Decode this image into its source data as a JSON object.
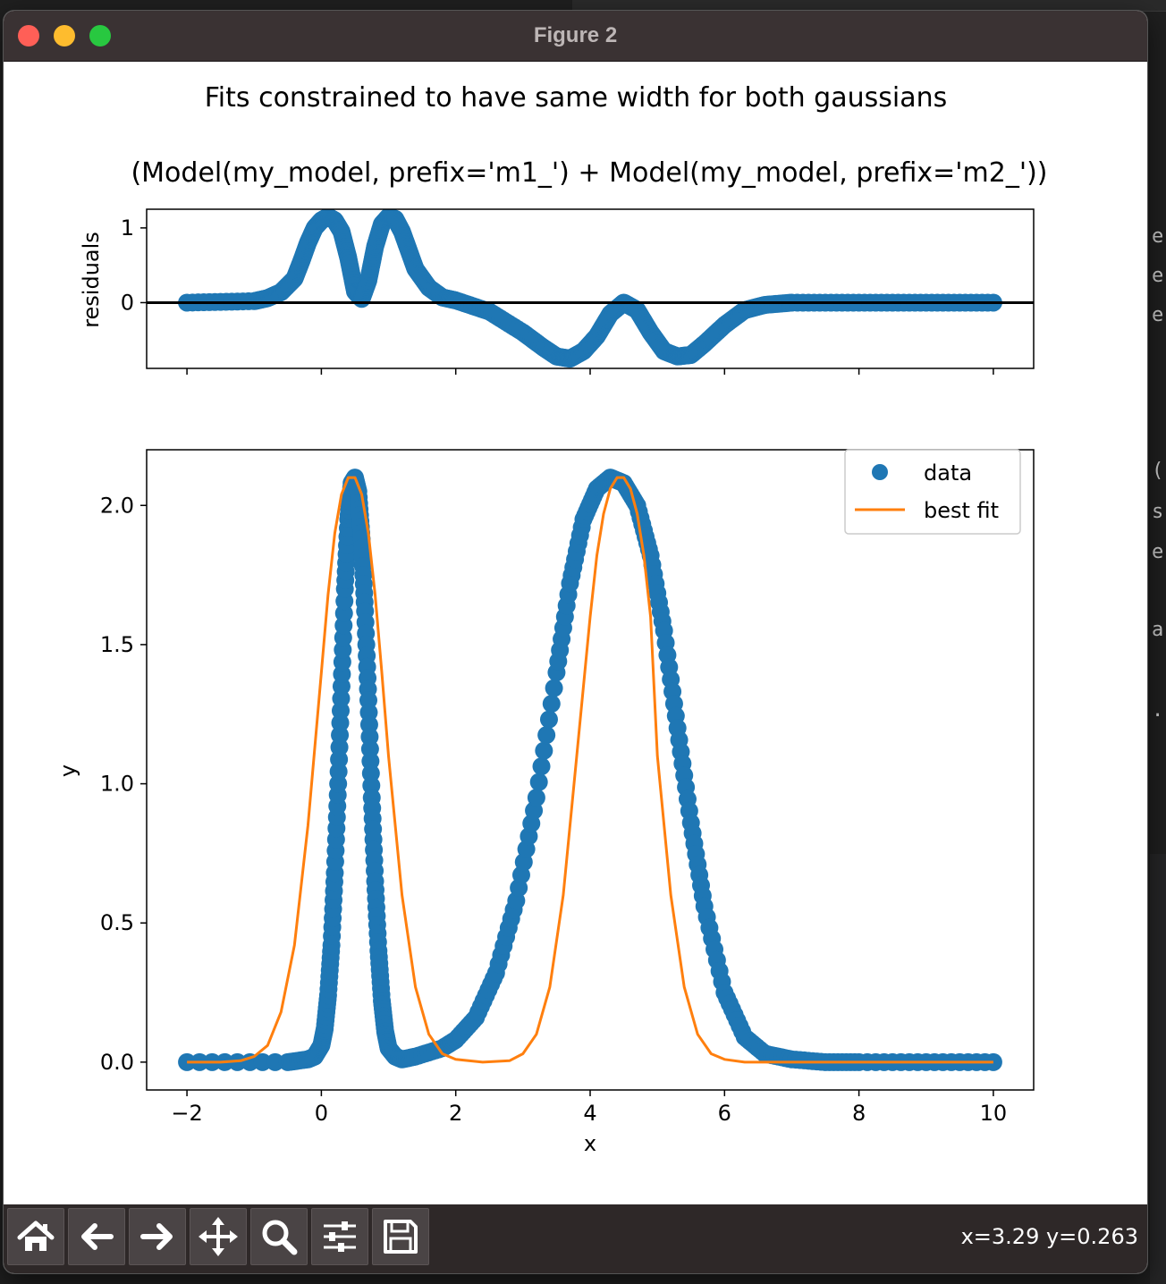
{
  "window": {
    "title": "Figure 2"
  },
  "figure": {
    "suptitle": "Fits constrained to have same width for both gaussians",
    "top_title": "(Model(my_model, prefix='m1_') + Model(my_model, prefix='m2_'))",
    "top_ylabel": "residuals",
    "bottom_xlabel": "x",
    "bottom_ylabel": "y"
  },
  "chart_data": [
    {
      "type": "scatter",
      "panel": "residuals",
      "xlim": [
        -2.6,
        10.6
      ],
      "ylim": [
        -0.88,
        1.25
      ],
      "yticks": [
        "0",
        "1"
      ],
      "y_tick_values": [
        0,
        1
      ],
      "x_tick_values": [
        -2,
        0,
        2,
        4,
        6,
        8,
        10
      ],
      "hline": 0,
      "series": [
        {
          "x": [
            -2.0,
            -1.0,
            -0.8,
            -0.6,
            -0.4,
            -0.3,
            -0.2,
            -0.1,
            0.0,
            0.1,
            0.2,
            0.3,
            0.4,
            0.5,
            0.6,
            0.7,
            0.8,
            0.9,
            1.0,
            1.1,
            1.2,
            1.3,
            1.4,
            1.6,
            1.8,
            2.0,
            2.5,
            3.0,
            3.3,
            3.5,
            3.7,
            3.9,
            4.1,
            4.3,
            4.5,
            4.7,
            4.9,
            5.1,
            5.3,
            5.5,
            5.7,
            6.0,
            6.3,
            6.6,
            7.0,
            8.0,
            9.0,
            10.0
          ],
          "y": [
            0.0,
            0.02,
            0.06,
            0.14,
            0.32,
            0.55,
            0.8,
            1.0,
            1.1,
            1.15,
            1.1,
            0.95,
            0.6,
            0.15,
            0.05,
            0.3,
            0.75,
            1.05,
            1.15,
            1.12,
            0.95,
            0.7,
            0.45,
            0.2,
            0.07,
            0.03,
            -0.12,
            -0.4,
            -0.6,
            -0.72,
            -0.75,
            -0.65,
            -0.45,
            -0.15,
            0.0,
            -0.1,
            -0.4,
            -0.65,
            -0.72,
            -0.7,
            -0.55,
            -0.3,
            -0.1,
            -0.03,
            0.0,
            0.0,
            0.0,
            0.0
          ]
        }
      ]
    },
    {
      "type": "scatter",
      "panel": "data",
      "xlim": [
        -2.6,
        10.6
      ],
      "ylim": [
        -0.1,
        2.2
      ],
      "xticks": [
        "−2",
        "0",
        "2",
        "4",
        "6",
        "8",
        "10"
      ],
      "x_tick_values": [
        -2,
        0,
        2,
        4,
        6,
        8,
        10
      ],
      "yticks": [
        "0.0",
        "0.5",
        "1.0",
        "1.5",
        "2.0"
      ],
      "y_tick_values": [
        0.0,
        0.5,
        1.0,
        1.5,
        2.0
      ],
      "legend_location": "top-right",
      "series": [
        {
          "name": "data",
          "x": [
            -2.0,
            -0.5,
            -0.2,
            -0.1,
            0.0,
            0.05,
            0.1,
            0.15,
            0.2,
            0.25,
            0.3,
            0.35,
            0.4,
            0.45,
            0.5,
            0.55,
            0.6,
            0.65,
            0.7,
            0.75,
            0.8,
            0.85,
            0.9,
            0.95,
            1.0,
            1.1,
            1.2,
            1.4,
            1.8,
            2.0,
            2.3,
            2.6,
            2.9,
            3.2,
            3.5,
            3.7,
            3.9,
            4.1,
            4.3,
            4.5,
            4.7,
            4.9,
            5.1,
            5.3,
            5.5,
            5.7,
            6.0,
            6.3,
            6.6,
            7.0,
            7.5,
            8.0,
            9.0,
            10.0
          ],
          "y": [
            0.0,
            0.0,
            0.01,
            0.02,
            0.06,
            0.12,
            0.24,
            0.42,
            0.68,
            1.0,
            1.35,
            1.7,
            1.95,
            2.08,
            2.1,
            2.05,
            1.88,
            1.62,
            1.3,
            0.95,
            0.65,
            0.4,
            0.22,
            0.11,
            0.05,
            0.02,
            0.01,
            0.02,
            0.05,
            0.08,
            0.16,
            0.32,
            0.58,
            0.95,
            1.4,
            1.72,
            1.95,
            2.06,
            2.1,
            2.08,
            2.0,
            1.82,
            1.55,
            1.2,
            0.86,
            0.56,
            0.25,
            0.09,
            0.03,
            0.01,
            0.0,
            0.0,
            0.0,
            0.0
          ]
        },
        {
          "name": "best fit",
          "x": [
            -2.0,
            -1.5,
            -1.2,
            -1.0,
            -0.8,
            -0.6,
            -0.4,
            -0.2,
            0.0,
            0.1,
            0.2,
            0.3,
            0.4,
            0.5,
            0.6,
            0.7,
            0.8,
            0.9,
            1.0,
            1.2,
            1.4,
            1.6,
            1.8,
            2.0,
            2.4,
            2.8,
            3.0,
            3.2,
            3.4,
            3.6,
            3.8,
            4.0,
            4.1,
            4.2,
            4.3,
            4.4,
            4.5,
            4.6,
            4.7,
            4.8,
            4.9,
            5.0,
            5.2,
            5.4,
            5.6,
            5.8,
            6.0,
            6.3,
            6.6,
            7.0,
            8.0,
            10.0
          ],
          "y": [
            0.0,
            0.0,
            0.005,
            0.02,
            0.06,
            0.18,
            0.42,
            0.85,
            1.4,
            1.68,
            1.9,
            2.04,
            2.1,
            2.1,
            2.04,
            1.9,
            1.68,
            1.4,
            1.1,
            0.6,
            0.27,
            0.1,
            0.03,
            0.01,
            0.0,
            0.005,
            0.03,
            0.1,
            0.27,
            0.6,
            1.1,
            1.6,
            1.82,
            1.97,
            2.06,
            2.1,
            2.1,
            2.06,
            1.97,
            1.82,
            1.6,
            1.1,
            0.6,
            0.27,
            0.1,
            0.03,
            0.01,
            0.0,
            0.0,
            0.0,
            0.0,
            0.0
          ]
        }
      ]
    }
  ],
  "colors": {
    "data": "#1f77b4",
    "best_fit": "#ff7f0e"
  },
  "toolbar": {
    "buttons": [
      "home-icon",
      "back-arrow-icon",
      "forward-arrow-icon",
      "pan-move-icon",
      "zoom-magnifier-icon",
      "subplots-config-icon",
      "save-disk-icon"
    ],
    "coords": "x=3.29 y=0.263"
  },
  "background_editor": {
    "side_letters": [
      "e",
      "e",
      "e",
      "(",
      "s",
      "e",
      "a",
      "."
    ]
  }
}
